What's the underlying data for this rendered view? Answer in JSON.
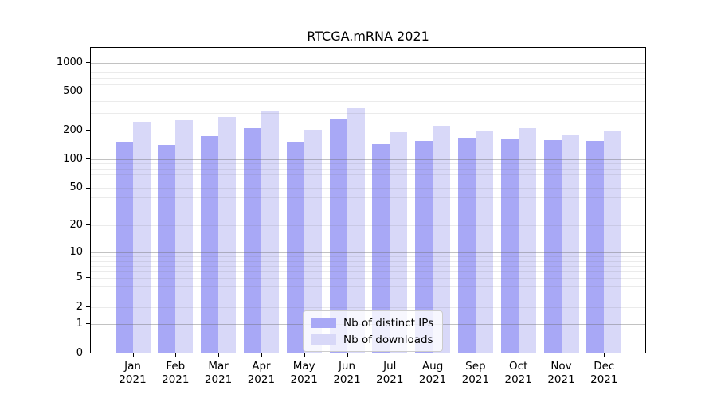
{
  "title": "RTCGA.mRNA 2021",
  "chart_data": {
    "type": "bar",
    "title": "RTCGA.mRNA 2021",
    "categories": [
      "Jan 2021",
      "Feb 2021",
      "Mar 2021",
      "Apr 2021",
      "May 2021",
      "Jun 2021",
      "Jul 2021",
      "Aug 2021",
      "Sep 2021",
      "Oct 2021",
      "Nov 2021",
      "Dec 2021"
    ],
    "series": [
      {
        "name": "Nb of distinct IPs",
        "color": "#a8a8f6",
        "values": [
          153,
          140,
          175,
          211,
          150,
          260,
          143,
          155,
          166,
          163,
          158,
          155
        ]
      },
      {
        "name": "Nb of downloads",
        "color": "#d8d8f8",
        "values": [
          245,
          255,
          277,
          315,
          203,
          340,
          190,
          221,
          200,
          211,
          181,
          197
        ]
      }
    ],
    "xlabel": "",
    "ylabel": "",
    "y_scale": "log10(value+1)",
    "y_ticks": [
      1000,
      500,
      200,
      100,
      50,
      20,
      10,
      5,
      2,
      1,
      0
    ],
    "y_minor_gridlines": [
      2,
      3,
      4,
      5,
      6,
      7,
      8,
      9,
      20,
      30,
      40,
      50,
      60,
      70,
      80,
      90,
      200,
      300,
      400,
      500,
      600,
      700,
      800,
      900
    ],
    "y_major_gridlines": [
      1,
      10,
      100,
      1000
    ],
    "ylim": [
      0,
      1000
    ],
    "grid": true,
    "legend_position": "bottom-center",
    "colors": {
      "major_grid": "#c3c3c3",
      "minor_grid": "#eaeaea",
      "axis": "#000000",
      "background": "#ffffff"
    }
  }
}
